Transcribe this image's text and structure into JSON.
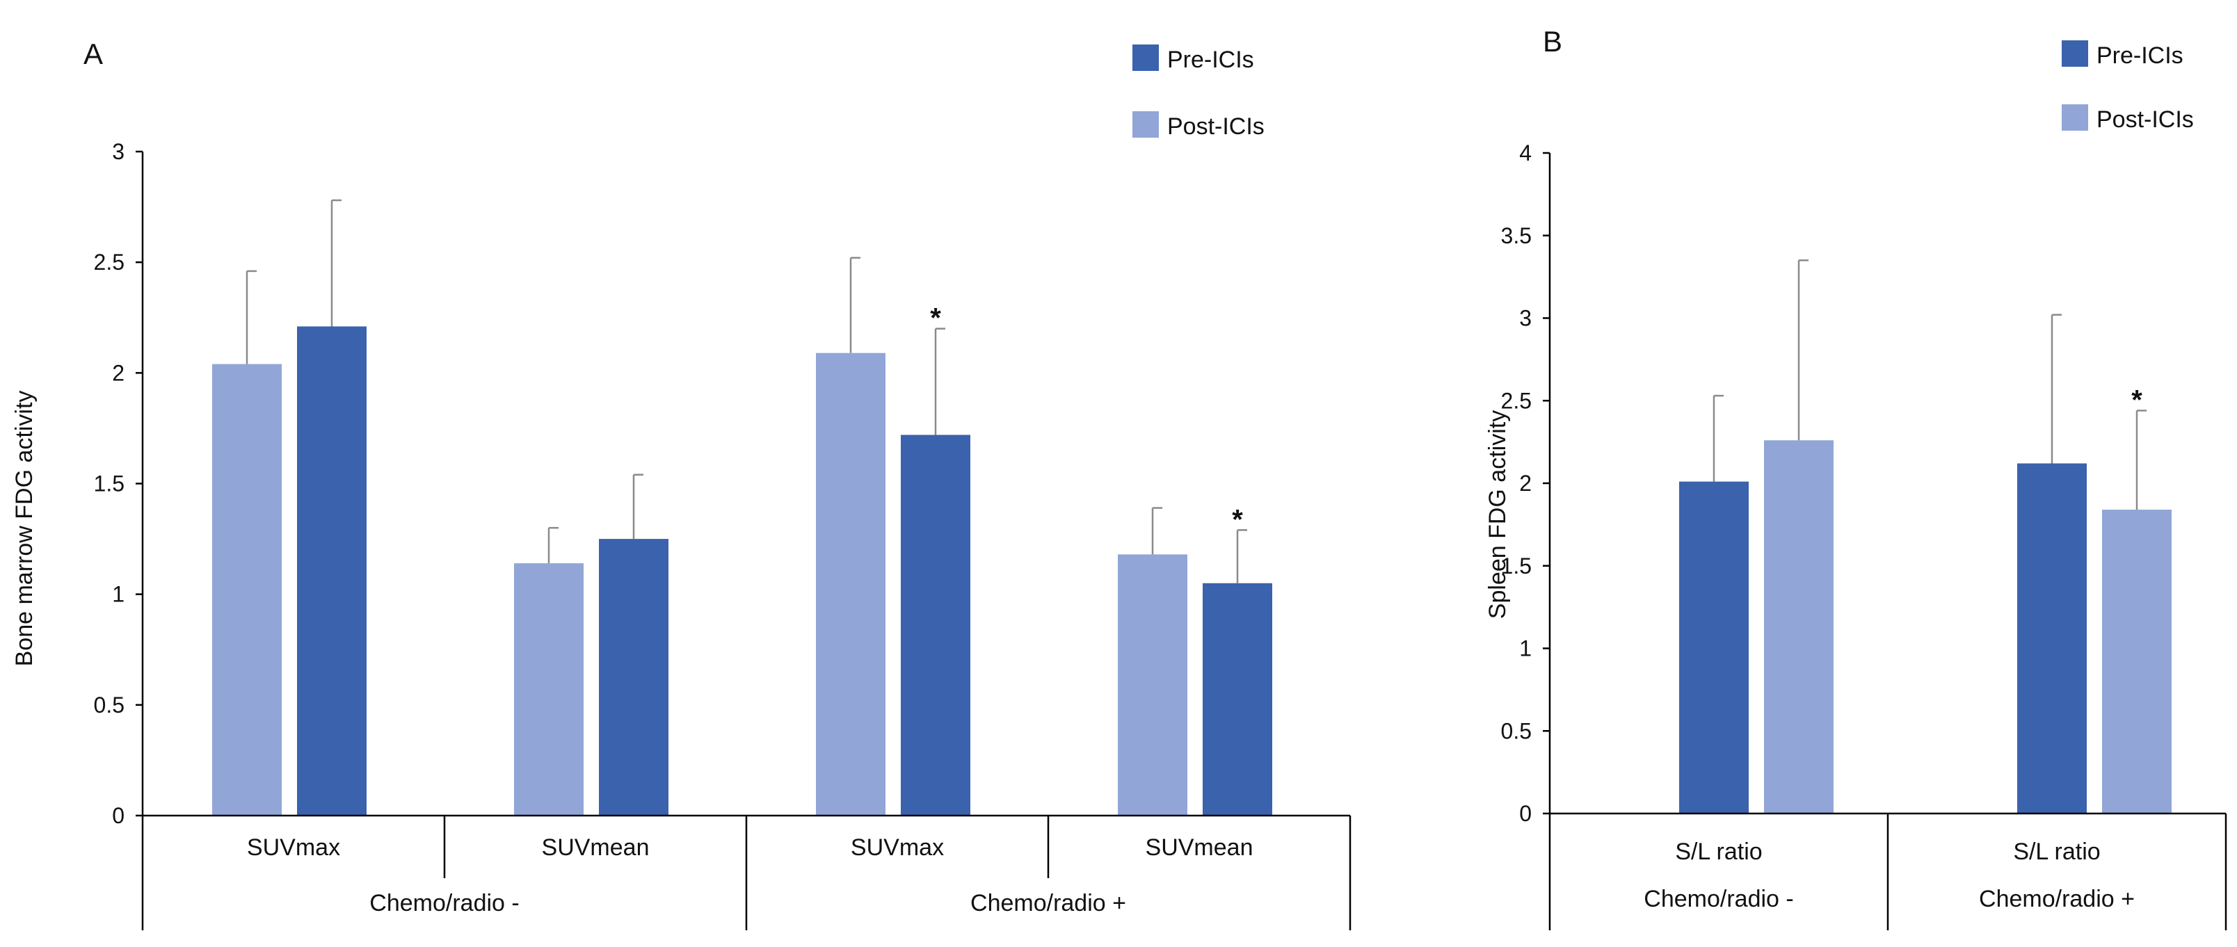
{
  "colors": {
    "pre": "#3a62ad",
    "post": "#91a6d7",
    "axis": "#000000",
    "errbar": "#8a8a8a"
  },
  "chart_data": [
    {
      "panel": "A",
      "type": "bar",
      "ylabel": "Bone marrow FDG activity",
      "ylim": [
        0,
        3
      ],
      "yticks": [
        0,
        0.5,
        1,
        1.5,
        2,
        2.5,
        3
      ],
      "ytick_labels": [
        "0",
        "0.5",
        "1",
        "1.5",
        "2",
        "2.5",
        "3"
      ],
      "legend": {
        "entries": [
          "Pre-ICIs",
          "Post-ICIs"
        ],
        "placement": "top-right"
      },
      "groups": [
        {
          "label": "SUVmax",
          "super": "Chemo/radio -",
          "bars": [
            {
              "series": "Post-ICIs",
              "value": 2.04,
              "error": 0.42
            },
            {
              "series": "Pre-ICIs",
              "value": 2.21,
              "error": 0.57
            }
          ]
        },
        {
          "label": "SUVmean",
          "super": "Chemo/radio -",
          "bars": [
            {
              "series": "Post-ICIs",
              "value": 1.14,
              "error": 0.16
            },
            {
              "series": "Pre-ICIs",
              "value": 1.25,
              "error": 0.29
            }
          ]
        },
        {
          "label": "SUVmax",
          "super": "Chemo/radio +",
          "bars": [
            {
              "series": "Post-ICIs",
              "value": 2.09,
              "error": 0.43
            },
            {
              "series": "Pre-ICIs",
              "value": 1.72,
              "error": 0.48,
              "star": "*"
            }
          ]
        },
        {
          "label": "SUVmean",
          "super": "Chemo/radio +",
          "bars": [
            {
              "series": "Post-ICIs",
              "value": 1.18,
              "error": 0.21
            },
            {
              "series": "Pre-ICIs",
              "value": 1.05,
              "error": 0.24,
              "star": "*"
            }
          ]
        }
      ],
      "supergroups": [
        "Chemo/radio -",
        "Chemo/radio +"
      ]
    },
    {
      "panel": "B",
      "type": "bar",
      "ylabel": "Spleen FDG activity",
      "ylim": [
        0,
        4
      ],
      "yticks": [
        0,
        0.5,
        1,
        1.5,
        2,
        2.5,
        3,
        3.5,
        4
      ],
      "ytick_labels": [
        "0",
        "0.5",
        "1",
        "1.5",
        "2",
        "2.5",
        "3",
        "3.5",
        "4"
      ],
      "legend": {
        "entries": [
          "Pre-ICIs",
          "Post-ICIs"
        ],
        "placement": "top-right"
      },
      "groups": [
        {
          "label": "S/L ratio",
          "super": "Chemo/radio -",
          "bars": [
            {
              "series": "Pre-ICIs",
              "value": 2.01,
              "error": 0.52
            },
            {
              "series": "Post-ICIs",
              "value": 2.26,
              "error": 1.09
            }
          ]
        },
        {
          "label": "S/L ratio",
          "super": "Chemo/radio +",
          "bars": [
            {
              "series": "Pre-ICIs",
              "value": 2.12,
              "error": 0.9
            },
            {
              "series": "Post-ICIs",
              "value": 1.84,
              "error": 0.6,
              "star": "*"
            }
          ]
        }
      ],
      "supergroups": [
        "Chemo/radio -",
        "Chemo/radio +"
      ]
    }
  ]
}
